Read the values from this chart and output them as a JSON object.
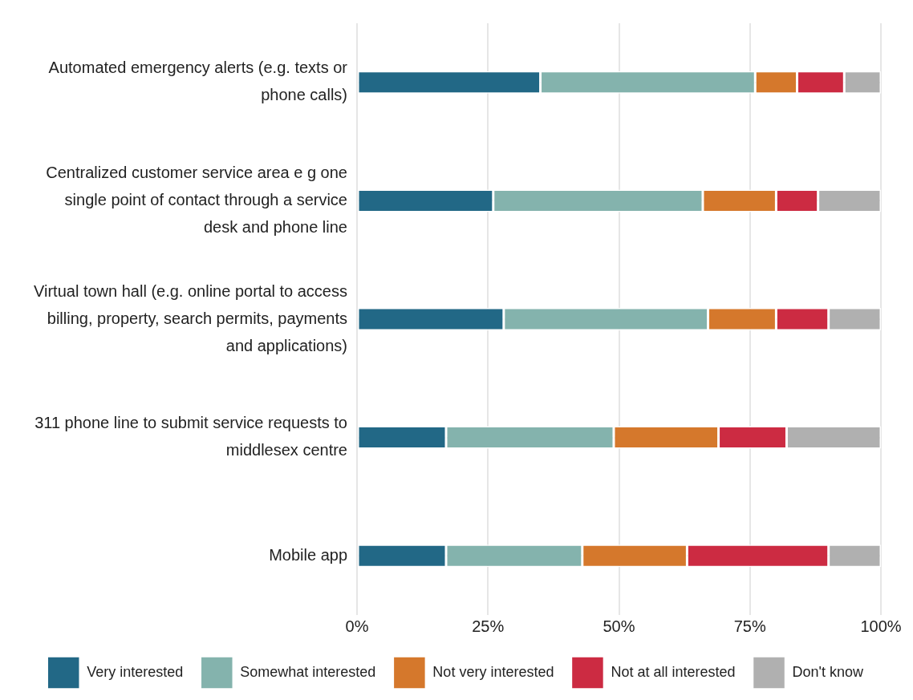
{
  "chart_data": {
    "type": "bar",
    "orientation": "horizontal",
    "stacked": true,
    "categories": [
      "Automated emergency alerts (e.g. texts or phone calls)",
      "Centralized customer service area e g one single point of contact through a service desk and phone line",
      "Virtual town hall (e.g. online portal to access billing, property, search permits, payments and applications)",
      "311 phone line to submit service requests to middlesex centre",
      "Mobile app"
    ],
    "series": [
      {
        "name": "Very interested",
        "color": "#226886",
        "values": [
          35,
          26,
          28,
          17,
          17
        ]
      },
      {
        "name": "Somewhat interested",
        "color": "#84b3ad",
        "values": [
          41,
          40,
          39,
          32,
          26
        ]
      },
      {
        "name": "Not very interested",
        "color": "#d5782c",
        "values": [
          8,
          14,
          13,
          20,
          20
        ]
      },
      {
        "name": "Not at all interested",
        "color": "#cc2b42",
        "values": [
          9,
          8,
          10,
          13,
          27
        ]
      },
      {
        "name": "Don't know",
        "color": "#b0b0b0",
        "values": [
          7,
          12,
          10,
          18,
          10
        ]
      }
    ],
    "xlim": [
      0,
      100
    ],
    "xticks": [
      {
        "value": 0,
        "label": "0%"
      },
      {
        "value": 25,
        "label": "25%"
      },
      {
        "value": 50,
        "label": "50%"
      },
      {
        "value": 75,
        "label": "75%"
      },
      {
        "value": 100,
        "label": "100%"
      }
    ],
    "grid": true,
    "legend": "bottom"
  }
}
